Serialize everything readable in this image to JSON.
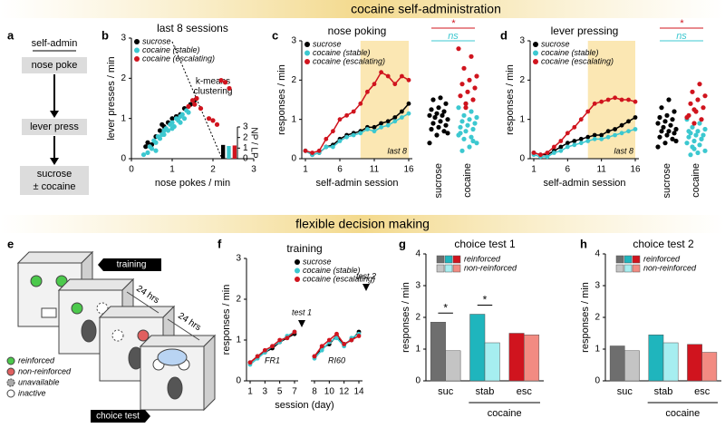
{
  "headings": [
    "cocaine self-administration",
    "flexible decision making"
  ],
  "panel_letters": [
    "a",
    "b",
    "c",
    "d",
    "e",
    "f",
    "g",
    "h"
  ],
  "schematic": {
    "title": "self-admin",
    "steps": [
      "nose poke",
      "lever press"
    ],
    "outcome": [
      "sucrose",
      "± cocaine"
    ]
  },
  "task": {
    "tags": [
      "training",
      "choice test"
    ],
    "delays": [
      "24 hrs",
      "24 hrs"
    ],
    "legend": [
      "reinforced",
      "non-reinforced",
      "unavailable",
      "inactive"
    ]
  },
  "chart_data": [
    {
      "type": "scatter",
      "title": "last 8 sessions",
      "xlabel": "nose pokes / min",
      "ylabel": "lever presses / min",
      "xlim": [
        0,
        3
      ],
      "xticks": [
        0,
        1,
        2,
        3
      ],
      "ylim": [
        0,
        3
      ],
      "yticks": [
        0,
        1,
        2,
        3
      ],
      "annotation": [
        "k-means",
        "clustering"
      ],
      "legend": "upper left",
      "series": [
        {
          "name": "sucrose",
          "color": "#000000",
          "x": [
            0.4,
            0.5,
            0.6,
            0.7,
            0.8,
            0.9,
            1.0,
            1.1,
            1.2,
            1.3,
            1.45,
            1.55,
            0.35,
            0.75
          ],
          "values": [
            0.4,
            0.35,
            0.55,
            0.7,
            0.8,
            0.9,
            1.0,
            1.05,
            1.1,
            1.25,
            1.35,
            1.45,
            0.3,
            0.85
          ]
        },
        {
          "name": "cocaine (stable)",
          "color": "#3cc8d0",
          "x": [
            0.3,
            0.4,
            0.45,
            0.5,
            0.55,
            0.6,
            0.65,
            0.7,
            0.75,
            0.8,
            0.85,
            0.9,
            0.95,
            1.0,
            1.05,
            1.1,
            1.15,
            1.2,
            1.25,
            1.3,
            1.35,
            1.4,
            0.6,
            0.8,
            1.0,
            1.2
          ],
          "values": [
            0.1,
            0.15,
            0.3,
            0.25,
            0.45,
            0.4,
            0.55,
            0.5,
            0.6,
            0.7,
            0.75,
            0.7,
            0.85,
            0.9,
            0.8,
            1.0,
            0.95,
            1.05,
            1.1,
            1.0,
            1.2,
            1.15,
            0.2,
            0.6,
            0.75,
            0.9
          ]
        },
        {
          "name": "cocaine (escalating)",
          "color": "#d0141e",
          "x": [
            1.4,
            1.5,
            1.6,
            1.7,
            1.9,
            2.0,
            2.1,
            2.3,
            2.4,
            1.55,
            2.2
          ],
          "values": [
            1.3,
            1.45,
            1.5,
            1.25,
            1.0,
            0.95,
            0.85,
            1.9,
            1.75,
            1.35,
            1.95
          ]
        }
      ]
    },
    {
      "type": "bar",
      "ylabel": "NP / LP",
      "ylim": [
        0,
        3
      ],
      "yticks": [
        0,
        1,
        2,
        3
      ],
      "yaxis": "right",
      "values": [
        1.3,
        1.2,
        1.25
      ],
      "colors": [
        "#000000",
        "#3cc8d0",
        "#d0141e"
      ]
    },
    {
      "type": "line",
      "title": "nose poking",
      "xlabel": "self-admin session",
      "ylabel": "responses / min",
      "x": [
        1,
        2,
        3,
        4,
        5,
        6,
        7,
        8,
        9,
        10,
        11,
        12,
        13,
        14,
        15,
        16
      ],
      "xlim": [
        1,
        16
      ],
      "xticks": [
        1,
        6,
        11,
        16
      ],
      "ylim": [
        0,
        3
      ],
      "yticks": [
        0,
        1,
        2,
        3
      ],
      "highlight": [
        9,
        16
      ],
      "highlight_label": "last 8",
      "legend": "upper left",
      "series": [
        {
          "name": "sucrose",
          "color": "#000000",
          "values": [
            0.2,
            0.1,
            0.15,
            0.3,
            0.35,
            0.5,
            0.6,
            0.65,
            0.7,
            0.8,
            0.8,
            0.9,
            0.95,
            1.05,
            1.2,
            1.4
          ]
        },
        {
          "name": "cocaine (stable)",
          "color": "#3cc8d0",
          "values": [
            0.2,
            0.1,
            0.15,
            0.3,
            0.3,
            0.45,
            0.55,
            0.6,
            0.65,
            0.75,
            0.7,
            0.8,
            0.85,
            0.95,
            1.05,
            1.15
          ]
        },
        {
          "name": "cocaine (escalating)",
          "color": "#d0141e",
          "values": [
            0.2,
            0.15,
            0.2,
            0.5,
            0.7,
            1.0,
            1.1,
            1.2,
            1.4,
            1.7,
            1.9,
            2.2,
            2.1,
            1.9,
            2.1,
            2.0
          ]
        }
      ]
    },
    {
      "type": "strip",
      "categories": [
        "sucrose",
        "cocaine"
      ],
      "ylim": [
        0,
        3
      ],
      "annotations": [
        {
          "text": "*",
          "color": "#d0141e"
        },
        {
          "text": "ns",
          "color": "#3cc8d0"
        }
      ],
      "series": [
        {
          "color": "#000000",
          "values": [
            0.4,
            0.6,
            0.7,
            0.75,
            0.8,
            0.85,
            0.9,
            0.95,
            1.0,
            1.05,
            1.1,
            1.1,
            1.15,
            1.2,
            1.25,
            1.3,
            1.4,
            1.5,
            1.55,
            0.65
          ]
        },
        {
          "color": "#3cc8d0",
          "values": [
            0.2,
            0.3,
            0.4,
            0.5,
            0.55,
            0.6,
            0.7,
            0.75,
            0.8,
            0.85,
            0.9,
            0.95,
            1.0,
            1.05,
            1.1,
            1.2,
            1.3,
            1.4,
            0.45,
            0.65
          ]
        },
        {
          "color": "#d0141e",
          "values": [
            1.3,
            1.5,
            1.6,
            1.7,
            1.8,
            1.9,
            2.0,
            2.1,
            2.3,
            2.6,
            2.8,
            1.4
          ]
        }
      ]
    },
    {
      "type": "line",
      "title": "lever pressing",
      "xlabel": "self-admin session",
      "ylabel": "responses / min",
      "x": [
        1,
        2,
        3,
        4,
        5,
        6,
        7,
        8,
        9,
        10,
        11,
        12,
        13,
        14,
        15,
        16
      ],
      "xlim": [
        1,
        16
      ],
      "xticks": [
        1,
        6,
        11,
        16
      ],
      "ylim": [
        0,
        3
      ],
      "yticks": [
        0,
        1,
        2,
        3
      ],
      "highlight": [
        9,
        16
      ],
      "highlight_label": "last 8",
      "legend": "upper left",
      "series": [
        {
          "name": "sucrose",
          "color": "#000000",
          "values": [
            0.15,
            0.1,
            0.1,
            0.2,
            0.3,
            0.4,
            0.45,
            0.5,
            0.55,
            0.6,
            0.6,
            0.7,
            0.75,
            0.85,
            0.95,
            1.05
          ]
        },
        {
          "name": "cocaine (stable)",
          "color": "#3cc8d0",
          "values": [
            0.1,
            0.05,
            0.05,
            0.15,
            0.2,
            0.3,
            0.35,
            0.4,
            0.45,
            0.5,
            0.5,
            0.55,
            0.6,
            0.65,
            0.7,
            0.75
          ]
        },
        {
          "name": "cocaine (escalating)",
          "color": "#d0141e",
          "values": [
            0.15,
            0.1,
            0.15,
            0.3,
            0.45,
            0.65,
            0.8,
            1.0,
            1.2,
            1.4,
            1.45,
            1.5,
            1.55,
            1.5,
            1.5,
            1.45
          ]
        }
      ]
    },
    {
      "type": "strip",
      "categories": [
        "sucrose",
        "cocaine"
      ],
      "ylim": [
        0,
        3
      ],
      "annotations": [
        {
          "text": "*",
          "color": "#d0141e"
        },
        {
          "text": "ns",
          "color": "#3cc8d0"
        }
      ],
      "series": [
        {
          "color": "#000000",
          "values": [
            0.3,
            0.4,
            0.5,
            0.55,
            0.6,
            0.65,
            0.7,
            0.7,
            0.75,
            0.8,
            0.85,
            0.9,
            0.95,
            1.0,
            1.05,
            1.1,
            1.2,
            1.3,
            1.5,
            0.45
          ]
        },
        {
          "color": "#3cc8d0",
          "values": [
            0.1,
            0.15,
            0.2,
            0.3,
            0.35,
            0.4,
            0.45,
            0.5,
            0.55,
            0.6,
            0.6,
            0.65,
            0.7,
            0.75,
            0.8,
            0.9,
            1.0,
            0.25,
            0.5,
            0.7
          ]
        },
        {
          "color": "#d0141e",
          "values": [
            0.9,
            1.0,
            1.1,
            1.2,
            1.3,
            1.4,
            1.5,
            1.6,
            1.7,
            1.9,
            1.05,
            1.25
          ]
        }
      ]
    },
    {
      "type": "line",
      "title": "training",
      "xlabel": "session (day)",
      "ylabel": "responses / min",
      "x": [
        1,
        2,
        3,
        4,
        5,
        6,
        7,
        8,
        9,
        10,
        11,
        12,
        13,
        14
      ],
      "xlim": [
        [
          1,
          7
        ],
        [
          8,
          14
        ]
      ],
      "xticks": [
        1,
        3,
        5,
        7,
        8,
        10,
        12,
        14
      ],
      "ylim": [
        0,
        3
      ],
      "yticks": [
        0,
        1,
        2,
        3
      ],
      "phases": [
        "FR1",
        "RI60"
      ],
      "tests": [
        "test 1",
        "test 2"
      ],
      "legend": "upper right",
      "series": [
        {
          "name": "sucrose",
          "color": "#000000",
          "values": [
            0.45,
            0.6,
            0.7,
            0.8,
            0.95,
            1.05,
            1.15,
            0.6,
            0.8,
            0.9,
            1.1,
            0.9,
            1.0,
            1.2
          ]
        },
        {
          "name": "cocaine (stable)",
          "color": "#3cc8d0",
          "values": [
            0.4,
            0.55,
            0.7,
            0.85,
            0.95,
            1.1,
            1.2,
            0.55,
            0.75,
            0.95,
            1.05,
            0.85,
            1.05,
            1.15
          ]
        },
        {
          "name": "cocaine (escalating)",
          "color": "#d0141e",
          "values": [
            0.45,
            0.6,
            0.75,
            0.85,
            1.0,
            1.05,
            1.2,
            0.6,
            0.85,
            1.0,
            1.15,
            0.9,
            1.0,
            1.1
          ]
        }
      ]
    },
    {
      "type": "grouped_bar",
      "title": "choice test 1",
      "ylabel": "responses / min",
      "categories": [
        "suc",
        "stab",
        "esc"
      ],
      "group_label": "cocaine",
      "ylim": [
        0,
        4
      ],
      "yticks": [
        0,
        1,
        2,
        3,
        4
      ],
      "significance": [
        "*",
        "*",
        null
      ],
      "series": [
        {
          "name": "reinforced",
          "colors": [
            "#6e6e6e",
            "#1fb5bd",
            "#d0141e"
          ],
          "values": [
            1.85,
            2.1,
            1.5
          ]
        },
        {
          "name": "non-reinforced",
          "colors": [
            "#c4c4c4",
            "#a6eef0",
            "#f28b82"
          ],
          "values": [
            0.95,
            1.2,
            1.45
          ]
        }
      ]
    },
    {
      "type": "grouped_bar",
      "title": "choice test 2",
      "ylabel": "responses / min",
      "categories": [
        "suc",
        "stab",
        "esc"
      ],
      "group_label": "cocaine",
      "ylim": [
        0,
        4
      ],
      "yticks": [
        0,
        1,
        2,
        3,
        4
      ],
      "series": [
        {
          "name": "reinforced",
          "colors": [
            "#6e6e6e",
            "#1fb5bd",
            "#d0141e"
          ],
          "values": [
            1.1,
            1.45,
            1.15
          ]
        },
        {
          "name": "non-reinforced",
          "colors": [
            "#c4c4c4",
            "#a6eef0",
            "#f28b82"
          ],
          "values": [
            0.95,
            1.2,
            0.9
          ]
        }
      ]
    }
  ]
}
